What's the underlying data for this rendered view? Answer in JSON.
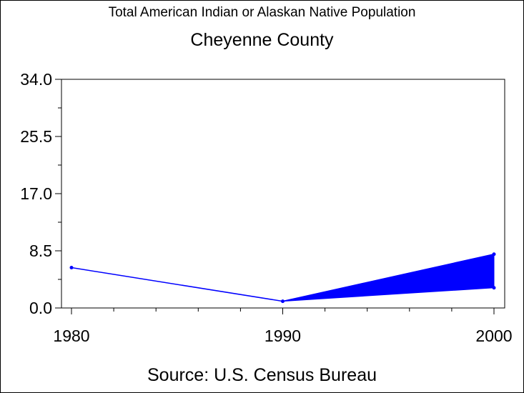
{
  "title": "Total American Indian or Alaskan Native Population",
  "subtitle": "Cheyenne County",
  "source": "Source: U.S. Census Bureau",
  "colors": {
    "series": "#0000ff",
    "axis": "#000000",
    "background": "#ffffff"
  },
  "chart_data": {
    "type": "line",
    "title": "Total American Indian or Alaskan Native Population",
    "subtitle": "Cheyenne County",
    "xlabel": "",
    "ylabel": "",
    "x": [
      1980,
      1990,
      2000
    ],
    "x_ticks": [
      "1980",
      "1990",
      "2000"
    ],
    "y_ticks": [
      "0.0",
      "8.5",
      "17.0",
      "25.5",
      "34.0"
    ],
    "xlim": [
      1980,
      2000
    ],
    "ylim": [
      0,
      34
    ],
    "grid": false,
    "series": [
      {
        "values": [
          6,
          1,
          8
        ]
      }
    ],
    "range_band": {
      "x": [
        1990,
        2000
      ],
      "lower": [
        1,
        3
      ],
      "upper": [
        1,
        8
      ]
    }
  }
}
